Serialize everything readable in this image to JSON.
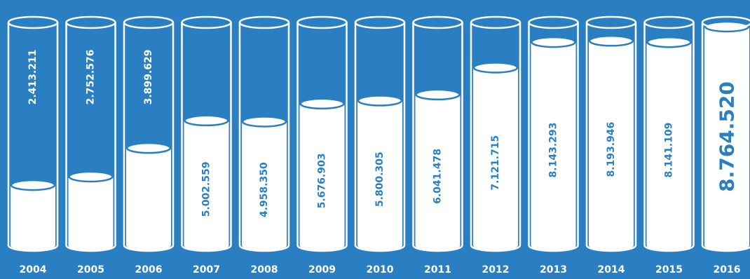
{
  "colors": {
    "background": "#2a7fc2",
    "tube_outline": "#ffffff",
    "fill": "#ffffff",
    "text_on_fill": "#2a7fc2",
    "text_on_background": "#ffffff"
  },
  "chart_data": {
    "type": "bar",
    "style": "cylinder tubes filled with liquid, values written vertically",
    "categories": [
      "2004",
      "2005",
      "2006",
      "2007",
      "2008",
      "2009",
      "2010",
      "2011",
      "2012",
      "2013",
      "2014",
      "2015",
      "2016"
    ],
    "values": [
      2413211,
      2752576,
      3899629,
      5002559,
      4958350,
      5676903,
      5800305,
      6041478,
      7121715,
      8143293,
      8193946,
      8141109,
      8764520
    ],
    "value_labels": [
      "2.413.211",
      "2.752.576",
      "3.899.629",
      "5.002.559",
      "4.958.350",
      "5.676.903",
      "5.800.305",
      "6.041.478",
      "7.121.715",
      "8.143.293",
      "8.193.946",
      "8.141.109",
      "8.764.520"
    ],
    "ylim": [
      0,
      8764520
    ],
    "title": "",
    "xlabel": "",
    "ylabel": "",
    "grid": false,
    "legend": "none",
    "highlight_last": true
  }
}
